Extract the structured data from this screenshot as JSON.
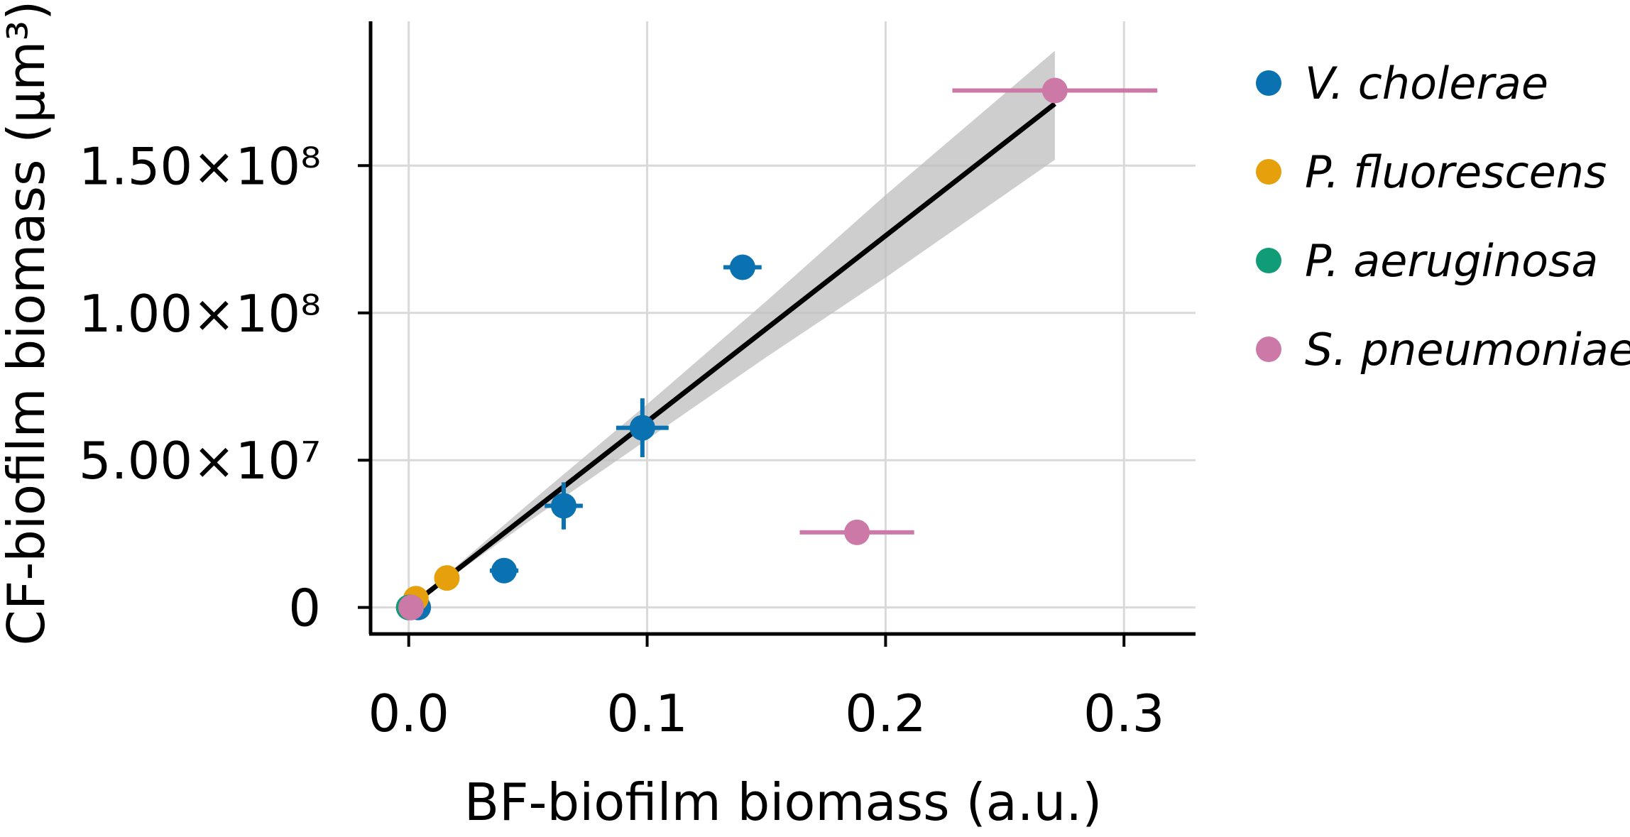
{
  "chart_data": {
    "type": "scatter",
    "xlabel": "BF-biofilm biomass (a.u.)",
    "ylabel": "CF-biofilm biomass (μm³)",
    "xlim": [
      -0.016,
      0.33
    ],
    "ylim": [
      -9000000,
      199000000
    ],
    "x_ticks": [
      0.0,
      0.1,
      0.2,
      0.3
    ],
    "x_tick_labels": [
      "0.0",
      "0.1",
      "0.2",
      "0.3"
    ],
    "y_ticks": [
      0,
      50000000,
      100000000,
      150000000
    ],
    "y_tick_labels": [
      "0",
      "5.00×10⁷",
      "1.00×10⁸",
      "1.50×10⁸"
    ],
    "grid": true,
    "legend_position": "outside-right",
    "series": [
      {
        "name": "V. cholerae",
        "color": "#0a72b1",
        "points": [
          {
            "x": 0.0,
            "y": 0,
            "xerr": 0.0,
            "yerr": 0
          },
          {
            "x": 0.004,
            "y": 0,
            "xerr": 0.002,
            "yerr": 500000
          },
          {
            "x": 0.04,
            "y": 12500000,
            "xerr": 0.006,
            "yerr": 2000000
          },
          {
            "x": 0.065,
            "y": 34500000,
            "xerr": 0.008,
            "yerr": 8000000
          },
          {
            "x": 0.098,
            "y": 61000000,
            "xerr": 0.011,
            "yerr": 10000000
          },
          {
            "x": 0.14,
            "y": 115500000,
            "xerr": 0.008,
            "yerr": 4000000
          }
        ]
      },
      {
        "name": "P. fluorescens",
        "color": "#e5a00b",
        "points": [
          {
            "x": 0.003,
            "y": 3000000,
            "xerr": 0.001,
            "yerr": 500000
          },
          {
            "x": 0.016,
            "y": 10000000,
            "xerr": 0.002,
            "yerr": 1000000
          }
        ]
      },
      {
        "name": "P. aeruginosa",
        "color": "#109c77",
        "points": [
          {
            "x": 0.0,
            "y": 0,
            "xerr": 0.0,
            "yerr": 0
          },
          {
            "x": 0.001,
            "y": 0,
            "xerr": 0.0,
            "yerr": 0
          }
        ]
      },
      {
        "name": "S. pneumoniae",
        "color": "#cd79a7",
        "points": [
          {
            "x": 0.001,
            "y": 0,
            "xerr": 0.0,
            "yerr": 0
          },
          {
            "x": 0.188,
            "y": 25500000,
            "xerr": 0.024,
            "yerr": 1000000
          },
          {
            "x": 0.271,
            "y": 175500000,
            "xerr": 0.043,
            "yerr": 1000000
          }
        ]
      }
    ],
    "fit": {
      "color": "#000000",
      "band_color": "#bdbdbd",
      "points": [
        {
          "x": 0.0,
          "y": 0,
          "lo": 0,
          "hi": 0
        },
        {
          "x": 0.05,
          "y": 32000000,
          "lo": 29000000,
          "hi": 35000000
        },
        {
          "x": 0.1,
          "y": 63000000,
          "lo": 57000000,
          "hi": 69000000
        },
        {
          "x": 0.15,
          "y": 95000000,
          "lo": 85000000,
          "hi": 104000000
        },
        {
          "x": 0.2,
          "y": 126000000,
          "lo": 112000000,
          "hi": 140000000
        },
        {
          "x": 0.271,
          "y": 171000000,
          "lo": 152000000,
          "hi": 189000000
        }
      ]
    }
  }
}
